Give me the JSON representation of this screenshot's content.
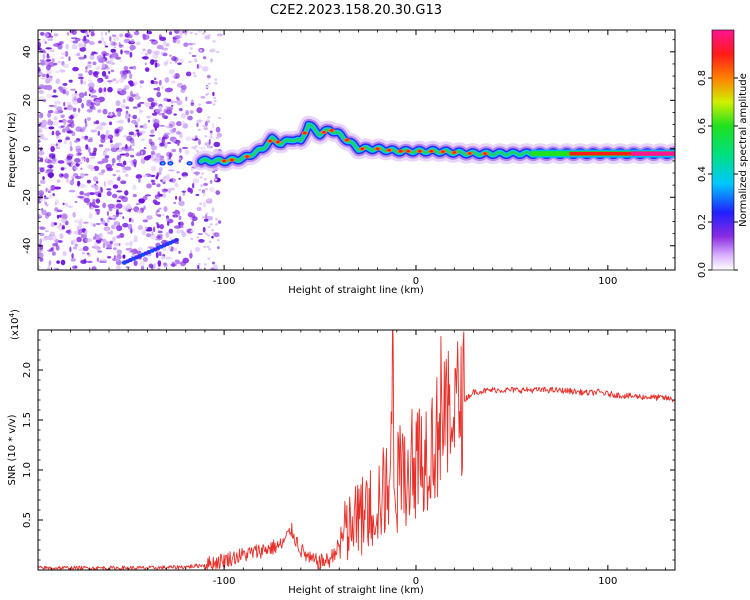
{
  "figure": {
    "title": "C2E2.2023.158.20.30.G13"
  },
  "colors": {
    "snr_line": "#e8302a",
    "spectrogram_low": "#c8a0f0",
    "spectrogram_mid": "#7a1ae6",
    "spectrogram_high": "#ff0055"
  },
  "chart_data": [
    {
      "type": "heatmap",
      "title": "",
      "xlabel": "Height of straight line (km)",
      "ylabel": "Frequency (Hz)",
      "xlim": [
        -197,
        135
      ],
      "ylim": [
        -50,
        49
      ],
      "xticks": [
        -100,
        0,
        100
      ],
      "xtick_labels": [
        "-100",
        "0",
        "100"
      ],
      "yticks": [
        -40,
        -20,
        0,
        20,
        40
      ],
      "ytick_labels": [
        "-40",
        "-20",
        "0",
        "20",
        "40"
      ],
      "grid": false,
      "colorbar": {
        "label": "Normalized spectral amplitude",
        "range": [
          0,
          1
        ],
        "ticks": [
          0.0,
          0.2,
          0.4,
          0.6,
          0.8
        ],
        "tick_labels": [
          "0.0",
          "0.2",
          "0.4",
          "0.6",
          "0.8"
        ],
        "colormap": "rainbow (white-purple-blue-cyan-green-yellow-red-magenta)"
      },
      "ridge": {
        "description_points_x": [
          -112,
          -100,
          -90,
          -80,
          -75,
          -70,
          -65,
          -60,
          -56,
          -50,
          -45,
          -40,
          -35,
          -30,
          -20,
          -10,
          0,
          10,
          30,
          60,
          80,
          100,
          135
        ],
        "description_points_y": [
          -5,
          -5,
          -4,
          0,
          4,
          2,
          4,
          3,
          10,
          6,
          8,
          6,
          3,
          0,
          0,
          -1,
          -1,
          -1,
          -2,
          -2,
          -2,
          -2,
          -2
        ]
      }
    },
    {
      "type": "line",
      "title": "",
      "xlabel": "Height of straight line (km)",
      "ylabel": "SNR (10 * v/v)",
      "yscale_note": "(x10",
      "yscale_exp": "4",
      "yscale_close": ")",
      "xlim": [
        -197,
        135
      ],
      "ylim": [
        0,
        2.4
      ],
      "xticks": [
        -100,
        0,
        100
      ],
      "xtick_labels": [
        "-100",
        "0",
        "100"
      ],
      "yticks": [
        0.5,
        1.0,
        1.5,
        2.0
      ],
      "ytick_labels": [
        "0.5",
        "1.0",
        "1.5",
        "2.0"
      ],
      "grid": false,
      "series": [
        {
          "x": [
            -197,
            -180,
            -160,
            -140,
            -120,
            -110,
            -100,
            -90,
            -80,
            -70,
            -65,
            -60,
            -55,
            -50,
            -45,
            -40,
            -35,
            -30,
            -25,
            -20,
            -15,
            -12,
            -10,
            -5,
            0,
            5,
            10,
            15,
            20,
            25,
            30,
            40,
            50,
            60,
            70,
            80,
            90,
            95,
            100,
            110,
            120,
            130,
            135
          ],
          "y": [
            0.02,
            0.02,
            0.02,
            0.02,
            0.03,
            0.05,
            0.1,
            0.15,
            0.2,
            0.25,
            0.4,
            0.2,
            0.1,
            0.08,
            0.1,
            0.25,
            0.4,
            0.5,
            0.6,
            0.7,
            0.8,
            1.3,
            0.85,
            1.0,
            1.1,
            1.2,
            1.3,
            1.45,
            1.6,
            1.7,
            1.78,
            1.8,
            1.8,
            1.8,
            1.8,
            1.79,
            1.77,
            1.78,
            1.76,
            1.74,
            1.73,
            1.72,
            1.7
          ]
        }
      ]
    }
  ]
}
